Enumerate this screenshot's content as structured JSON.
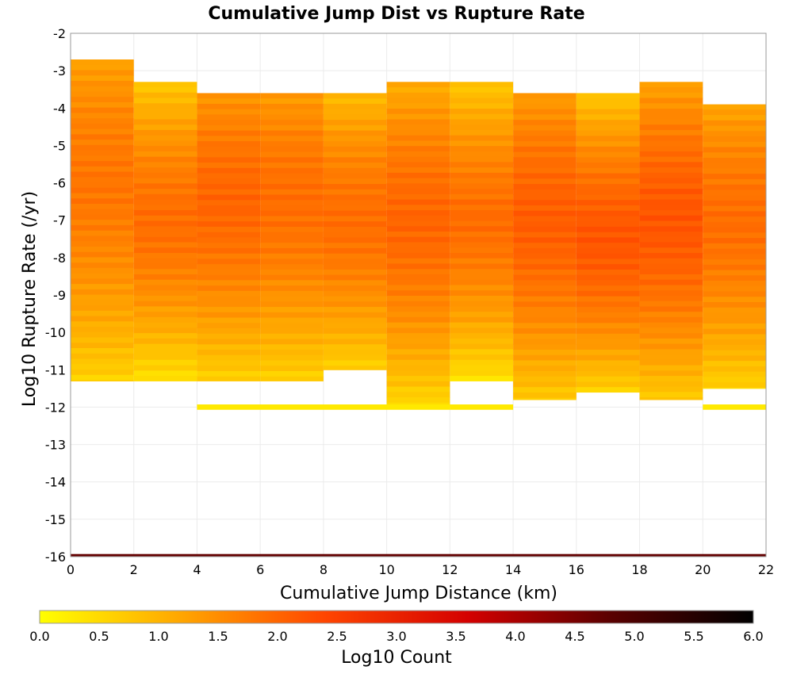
{
  "chart_data": {
    "type": "heatmap",
    "title": "Cumulative Jump Dist vs Rupture Rate",
    "xlabel": "Cumulative Jump Distance (km)",
    "ylabel": "Log10 Rupture Rate (/yr)",
    "xlim": [
      0,
      22
    ],
    "ylim": [
      -16,
      -2
    ],
    "x_bin_width": 2,
    "y_bin_height": 0.143,
    "grid": true,
    "x_ticks": [
      "0",
      "2",
      "4",
      "6",
      "8",
      "10",
      "12",
      "14",
      "16",
      "18",
      "20",
      "22"
    ],
    "y_ticks": [
      "-2",
      "-3",
      "-4",
      "-5",
      "-6",
      "-7",
      "-8",
      "-9",
      "-10",
      "-11",
      "-12",
      "-13",
      "-14",
      "-15",
      "-16"
    ],
    "colorbar": {
      "label": "Log10 Count",
      "range": [
        0,
        6
      ],
      "ticks": [
        "0.0",
        "0.5",
        "1.0",
        "1.5",
        "2.0",
        "2.5",
        "3.0",
        "3.5",
        "4.0",
        "4.5",
        "5.0",
        "5.5",
        "6.0"
      ],
      "colors": [
        "#ffff00",
        "#ffa500",
        "#ff4500",
        "#d40000",
        "#5a0000",
        "#000000"
      ]
    },
    "columns": [
      {
        "x": 0,
        "y_top": -2.7,
        "y_bottom": -11.3,
        "peak": -6.0,
        "peak_value": 1.8,
        "edge_value": 0.6
      },
      {
        "x": 2,
        "y_top": -3.3,
        "y_bottom": -11.3,
        "peak": -7.0,
        "peak_value": 1.9,
        "edge_value": 0.4
      },
      {
        "x": 4,
        "y_top": -3.6,
        "y_bottom": -11.3,
        "peak": -6.5,
        "peak_value": 2.0,
        "edge_value": 0.6
      },
      {
        "x": 6,
        "y_top": -3.6,
        "y_bottom": -11.3,
        "peak": -6.5,
        "peak_value": 1.9,
        "edge_value": 0.6
      },
      {
        "x": 8,
        "y_top": -3.6,
        "y_bottom": -11.0,
        "peak": -7.0,
        "peak_value": 1.9,
        "edge_value": 0.6
      },
      {
        "x": 10,
        "y_top": -3.3,
        "y_bottom": -12.0,
        "peak": -7.0,
        "peak_value": 2.0,
        "edge_value": 0.5
      },
      {
        "x": 12,
        "y_top": -3.3,
        "y_bottom": -11.3,
        "peak": -7.0,
        "peak_value": 1.9,
        "edge_value": 0.4
      },
      {
        "x": 14,
        "y_top": -3.6,
        "y_bottom": -11.8,
        "peak": -7.0,
        "peak_value": 2.1,
        "edge_value": 0.7
      },
      {
        "x": 16,
        "y_top": -3.6,
        "y_bottom": -11.6,
        "peak": -7.5,
        "peak_value": 2.2,
        "edge_value": 0.6
      },
      {
        "x": 18,
        "y_top": -3.3,
        "y_bottom": -11.8,
        "peak": -7.0,
        "peak_value": 2.2,
        "edge_value": 0.7
      },
      {
        "x": 20,
        "y_top": -3.9,
        "y_bottom": -11.5,
        "peak": -7.0,
        "peak_value": 1.9,
        "edge_value": 0.6
      }
    ],
    "extra_cells": [
      {
        "x0": 4,
        "x1": 12,
        "y": -12.0,
        "value": 0.3
      },
      {
        "x0": 12,
        "x1": 14,
        "y": -12.0,
        "value": 0.3
      },
      {
        "x0": 20,
        "x1": 22,
        "y": -12.0,
        "value": 0.3
      }
    ],
    "baseline_row": {
      "y": -16.0,
      "x0": 0,
      "x1": 22,
      "value": 4.7
    }
  }
}
